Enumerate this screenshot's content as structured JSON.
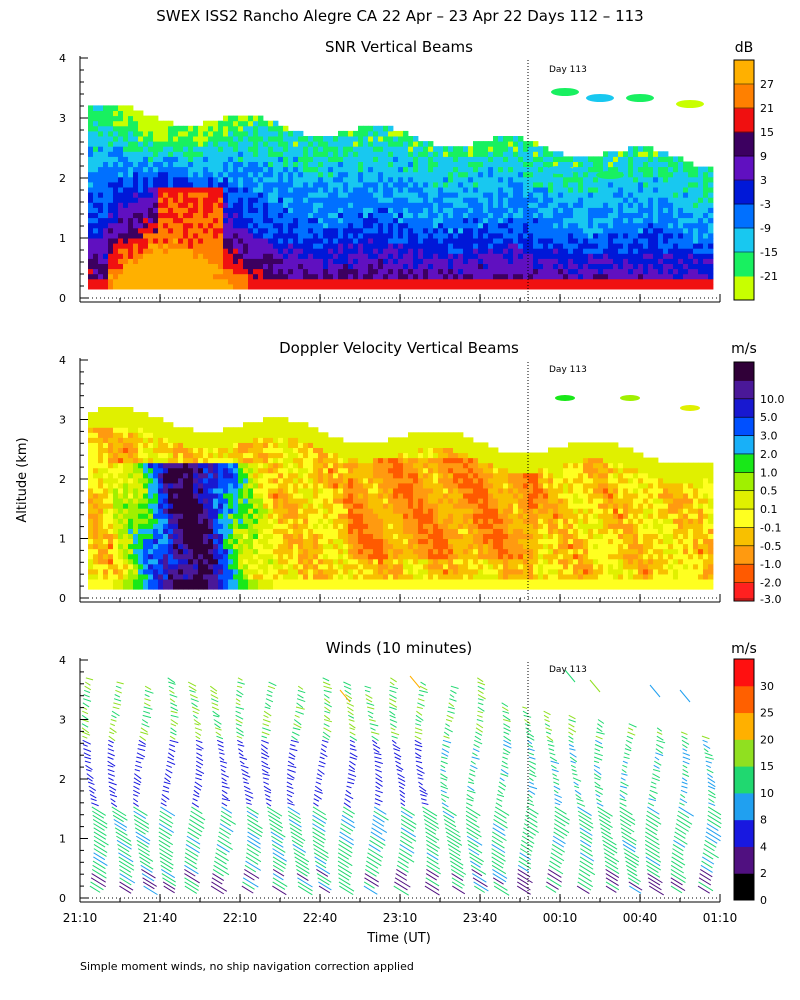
{
  "title": "SWEX ISS2 Rancho Alegre CA  22 Apr – 23 Apr 22 Days 112 – 113",
  "footer": "Simple moment winds, no ship navigation correction applied",
  "ylabel": "Altitude (km)",
  "xlabel": "Time (UT)",
  "time_ticks": [
    "21:10",
    "21:40",
    "22:10",
    "22:40",
    "23:10",
    "23:40",
    "00:10",
    "00:40",
    "01:10"
  ],
  "altitude_ticks": [
    "0",
    "1",
    "2",
    "3",
    "4"
  ],
  "day_marker": {
    "label": "Day 113",
    "time": "23:58"
  },
  "colors": {
    "snr": [
      "#c8ff00",
      "#18f060",
      "#18c8f0",
      "#0070ff",
      "#0018d8",
      "#6010c0",
      "#3c0060",
      "#f01010",
      "#ff8000",
      "#ffb000"
    ],
    "doppler": [
      "#ff2020",
      "#ff5a00",
      "#ff9a10",
      "#f8c000",
      "#ffff20",
      "#e0f000",
      "#a0f000",
      "#18e818",
      "#18b0f8",
      "#0050ff",
      "#1818d0",
      "#4a1898",
      "#300038"
    ],
    "winds": [
      "#000000",
      "#501080",
      "#1818e0",
      "#20a0f0",
      "#20d870",
      "#90e020",
      "#ffb000",
      "#ff6000",
      "#ff1010"
    ]
  },
  "chart_data": [
    {
      "type": "heatmap",
      "title": "SNR Vertical Beams",
      "unit": "dB",
      "colorbar_labels": [
        "-21",
        "-15",
        "-9",
        "-3",
        "3",
        "9",
        "15",
        "21",
        "27"
      ],
      "x_range": [
        "21:10",
        "01:10"
      ],
      "ylim": [
        0,
        4
      ],
      "annotations": [
        "Day 113"
      ]
    },
    {
      "type": "heatmap",
      "title": "Doppler Velocity Vertical Beams",
      "unit": "m/s",
      "colorbar_labels": [
        "-3.0",
        "-2.0",
        "-1.0",
        "-0.5",
        "-0.1",
        "0.1",
        "0.5",
        "1.0",
        "2.0",
        "3.0",
        "5.0",
        "10.0"
      ],
      "x_range": [
        "21:10",
        "01:10"
      ],
      "ylim": [
        0,
        4
      ],
      "annotations": [
        "Day 113"
      ]
    },
    {
      "type": "scatter",
      "title": "Winds (10 minutes)",
      "unit": "m/s",
      "colorbar_labels": [
        "0",
        "2",
        "4",
        "8",
        "10",
        "15",
        "20",
        "25",
        "30"
      ],
      "x_range": [
        "21:10",
        "01:10"
      ],
      "ylim": [
        0,
        4
      ],
      "annotations": [
        "Day 113"
      ]
    }
  ]
}
